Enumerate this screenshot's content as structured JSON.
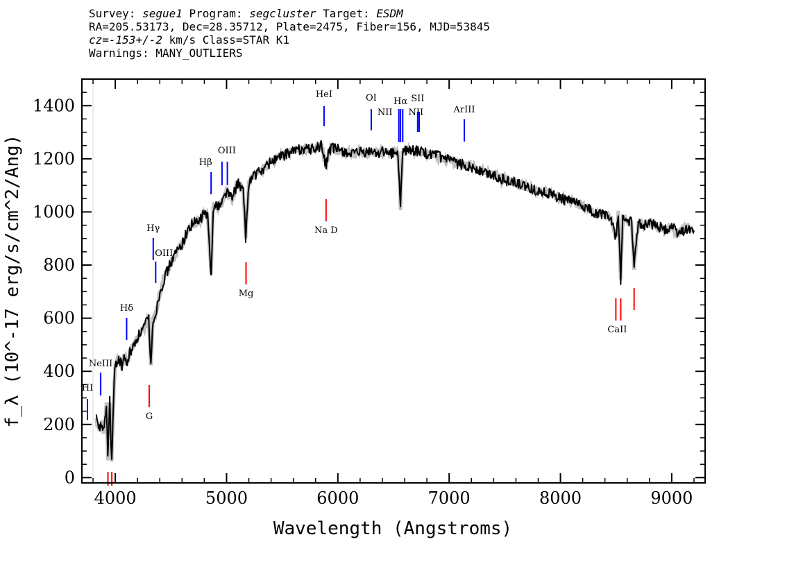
{
  "header": {
    "line1": [
      {
        "t": "Survey: ",
        "i": false
      },
      {
        "t": "segue1",
        "i": true
      },
      {
        "t": " Program: ",
        "i": false
      },
      {
        "t": "segcluster",
        "i": true
      },
      {
        "t": " Target: ",
        "i": false
      },
      {
        "t": "ESDM",
        "i": true
      }
    ],
    "line2": [
      {
        "t": "RA=205.53173, Dec=28.35712, Plate=2475, Fiber=156, MJD=53845",
        "i": false
      }
    ],
    "line3": [
      {
        "t": "cz=",
        "i": true
      },
      {
        "t": "-153+/-2",
        "i": true
      },
      {
        "t": " km/s Class=STAR K1",
        "i": false
      }
    ],
    "line4": [
      {
        "t": "Warnings: MANY_OUTLIERS",
        "i": false
      }
    ]
  },
  "chart_data": {
    "type": "line",
    "xlabel": "Wavelength (Angstroms)",
    "ylabel": "f_λ (10^-17 erg/s/cm^2/Ang)",
    "xlim": [
      3700,
      9300
    ],
    "ylim": [
      -20,
      1500
    ],
    "xticks": [
      4000,
      5000,
      6000,
      7000,
      8000,
      9000
    ],
    "yticks": [
      0,
      200,
      400,
      600,
      800,
      1000,
      1200,
      1400
    ],
    "colors": {
      "spectrum": "#000000",
      "error_band": "#c0c0c0",
      "emission": "#0000ff",
      "absorption": "#ff0000"
    },
    "series": [
      {
        "x": [
          3830,
          3850,
          3880,
          3900,
          3920,
          3933,
          3950,
          3968,
          3990,
          4000,
          4030,
          4060,
          4080,
          4101,
          4130,
          4160,
          4200,
          4250,
          4300,
          4320,
          4340,
          4360,
          4400,
          4450,
          4500,
          4550,
          4600,
          4650,
          4700,
          4750,
          4800,
          4830,
          4861,
          4880,
          4900,
          4950,
          5000,
          5050,
          5100,
          5150,
          5172,
          5200,
          5250,
          5300,
          5350,
          5400,
          5450,
          5500,
          5550,
          5600,
          5650,
          5700,
          5750,
          5800,
          5850,
          5890,
          5896,
          5920,
          5950,
          6000,
          6050,
          6100,
          6150,
          6200,
          6250,
          6300,
          6350,
          6400,
          6450,
          6500,
          6540,
          6563,
          6580,
          6600,
          6650,
          6700,
          6750,
          6800,
          6850,
          6900,
          6950,
          7000,
          7050,
          7100,
          7150,
          7200,
          7300,
          7400,
          7500,
          7600,
          7700,
          7800,
          7900,
          8000,
          8100,
          8200,
          8300,
          8400,
          8450,
          8498,
          8520,
          8542,
          8560,
          8600,
          8640,
          8662,
          8700,
          8750,
          8800,
          8850,
          8900,
          8950,
          9000,
          9050,
          9100,
          9150,
          9200
        ],
        "y": [
          220,
          180,
          200,
          170,
          280,
          80,
          290,
          60,
          360,
          420,
          450,
          420,
          460,
          420,
          470,
          490,
          530,
          560,
          600,
          420,
          600,
          610,
          700,
          760,
          810,
          850,
          880,
          930,
          960,
          960,
          1000,
          980,
          760,
          1020,
          1020,
          1030,
          1080,
          1050,
          1110,
          1080,
          900,
          1110,
          1140,
          1150,
          1170,
          1190,
          1200,
          1210,
          1220,
          1230,
          1235,
          1240,
          1235,
          1240,
          1250,
          1180,
          1180,
          1230,
          1240,
          1235,
          1230,
          1220,
          1215,
          1225,
          1220,
          1230,
          1220,
          1230,
          1215,
          1225,
          1220,
          1010,
          1220,
          1230,
          1235,
          1230,
          1225,
          1220,
          1215,
          1210,
          1200,
          1195,
          1185,
          1180,
          1175,
          1170,
          1150,
          1140,
          1120,
          1110,
          1090,
          1080,
          1070,
          1050,
          1040,
          1020,
          1000,
          990,
          980,
          900,
          990,
          740,
          980,
          970,
          960,
          790,
          960,
          950,
          960,
          950,
          940,
          930,
          950,
          920,
          930,
          940,
          930
        ]
      }
    ],
    "emission_lines": [
      {
        "name": "HI",
        "x": 3750
      },
      {
        "name": "NeIII",
        "x": 3869
      },
      {
        "name": "Hδ",
        "x": 4102
      },
      {
        "name": "Hγ",
        "x": 4341
      },
      {
        "name": "OIII",
        "x": 4363
      },
      {
        "name": "Hβ",
        "x": 4861
      },
      {
        "name": "OIII",
        "x": 4959
      },
      {
        "name": "OIII",
        "x": 5007
      },
      {
        "name": "HeI",
        "x": 5876
      },
      {
        "name": "OI",
        "x": 6300
      },
      {
        "name": "NII",
        "x": 6548
      },
      {
        "name": "Hα",
        "x": 6563
      },
      {
        "name": "NII",
        "x": 6583
      },
      {
        "name": "SII",
        "x": 6717
      },
      {
        "name": "SII",
        "x": 6731
      },
      {
        "name": "ArIII",
        "x": 7136
      }
    ],
    "absorption_lines": [
      {
        "name": "",
        "x": 3934
      },
      {
        "name": "",
        "x": 3969
      },
      {
        "name": "G",
        "x": 4305
      },
      {
        "name": "Mg",
        "x": 5175
      },
      {
        "name": "Na D",
        "x": 5894
      },
      {
        "name": "CaII",
        "x": 8498
      },
      {
        "name": "",
        "x": 8542
      },
      {
        "name": "",
        "x": 8662
      }
    ]
  }
}
